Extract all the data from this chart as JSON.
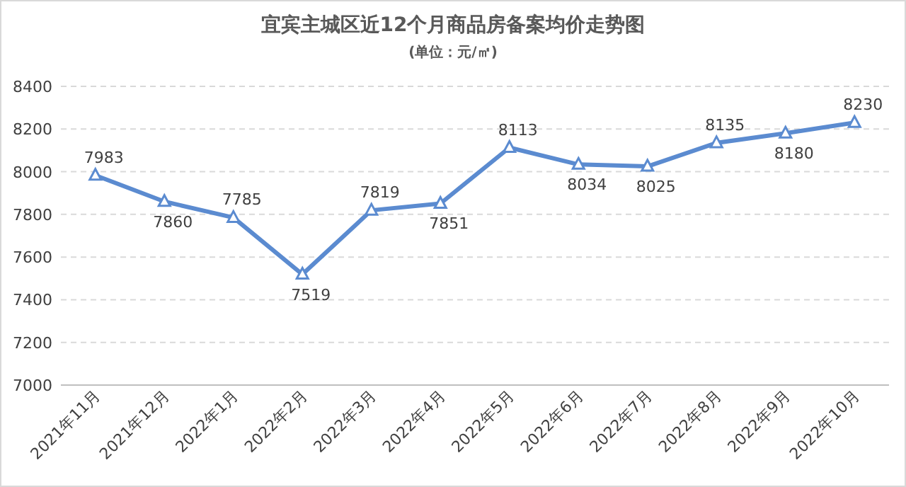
{
  "chart_data": {
    "type": "line",
    "title": "宜宾主城区近12个月商品房备案均价走势图",
    "subtitle": "(单位：元/㎡)",
    "categories": [
      "2021年11月",
      "2021年12月",
      "2022年1月",
      "2022年2月",
      "2022年3月",
      "2022年4月",
      "2022年5月",
      "2022年6月",
      "2022年7月",
      "2022年8月",
      "2022年9月",
      "2022年10月"
    ],
    "series": [
      {
        "color": "#5b8bd0",
        "values": [
          7983,
          7860,
          7785,
          7519,
          7819,
          7851,
          8113,
          8034,
          8025,
          8135,
          8180,
          8230
        ]
      }
    ],
    "ylim": [
      7000,
      8400
    ],
    "yticks": [
      7000,
      7200,
      7400,
      7600,
      7800,
      8000,
      8200,
      8400
    ],
    "grid": "y",
    "marker": "triangle",
    "data_labels": true
  }
}
